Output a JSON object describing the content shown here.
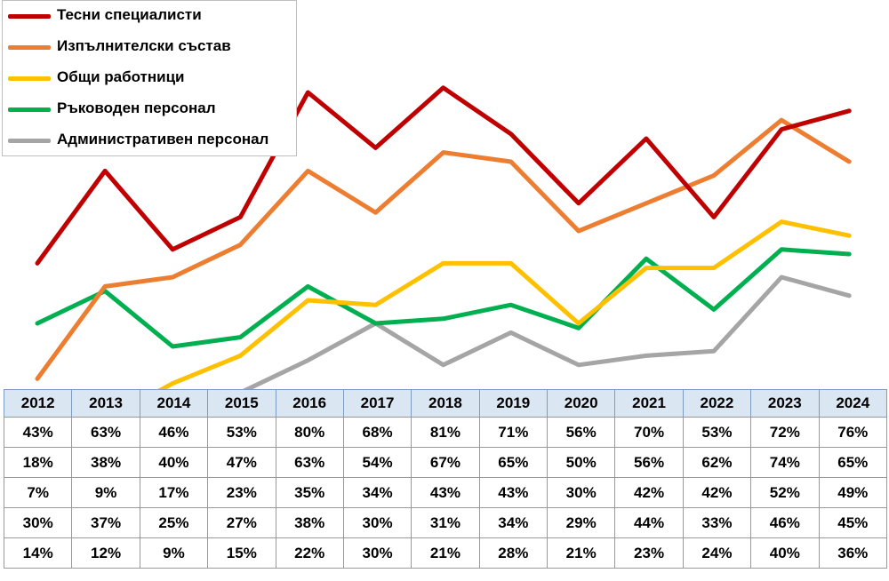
{
  "chart_data": {
    "type": "line",
    "categories": [
      "2012",
      "2013",
      "2014",
      "2015",
      "2016",
      "2017",
      "2018",
      "2019",
      "2020",
      "2021",
      "2022",
      "2023",
      "2024"
    ],
    "series": [
      {
        "name": "Тесни специалисти",
        "color": "#c00000",
        "values": [
          43,
          63,
          46,
          53,
          80,
          68,
          81,
          71,
          56,
          70,
          53,
          72,
          76
        ]
      },
      {
        "name": "Изпълнителски състав",
        "color": "#ed7d31",
        "values": [
          18,
          38,
          40,
          47,
          63,
          54,
          67,
          65,
          50,
          56,
          62,
          74,
          65
        ]
      },
      {
        "name": "Общи работници",
        "color": "#ffc000",
        "values": [
          7,
          9,
          17,
          23,
          35,
          34,
          43,
          43,
          30,
          42,
          42,
          52,
          49
        ]
      },
      {
        "name": "Ръководен персонал",
        "color": "#00b050",
        "values": [
          30,
          37,
          25,
          27,
          38,
          30,
          31,
          34,
          29,
          44,
          33,
          46,
          45
        ]
      },
      {
        "name": "Административен персонал",
        "color": "#a5a5a5",
        "values": [
          14,
          12,
          9,
          15,
          22,
          30,
          21,
          28,
          21,
          23,
          24,
          40,
          36
        ]
      }
    ],
    "table": {
      "headers": [
        "2012",
        "2013",
        "2014",
        "2015",
        "2016",
        "2017",
        "2018",
        "2019",
        "2020",
        "2021",
        "2022",
        "2023",
        "2024"
      ],
      "rows": [
        [
          "43%",
          "63%",
          "46%",
          "53%",
          "80%",
          "68%",
          "81%",
          "71%",
          "56%",
          "70%",
          "53%",
          "72%",
          "76%"
        ],
        [
          "18%",
          "38%",
          "40%",
          "47%",
          "63%",
          "54%",
          "67%",
          "65%",
          "50%",
          "56%",
          "62%",
          "74%",
          "65%"
        ],
        [
          "7%",
          "9%",
          "17%",
          "23%",
          "35%",
          "34%",
          "43%",
          "43%",
          "30%",
          "42%",
          "42%",
          "52%",
          "49%"
        ],
        [
          "30%",
          "37%",
          "25%",
          "27%",
          "38%",
          "30%",
          "31%",
          "34%",
          "29%",
          "44%",
          "33%",
          "46%",
          "45%"
        ],
        [
          "14%",
          "12%",
          "9%",
          "15%",
          "22%",
          "30%",
          "21%",
          "28%",
          "21%",
          "23%",
          "24%",
          "40%",
          "36%"
        ]
      ]
    },
    "ylim": [
      0,
      100
    ],
    "grid": false,
    "legend": "top-left"
  }
}
